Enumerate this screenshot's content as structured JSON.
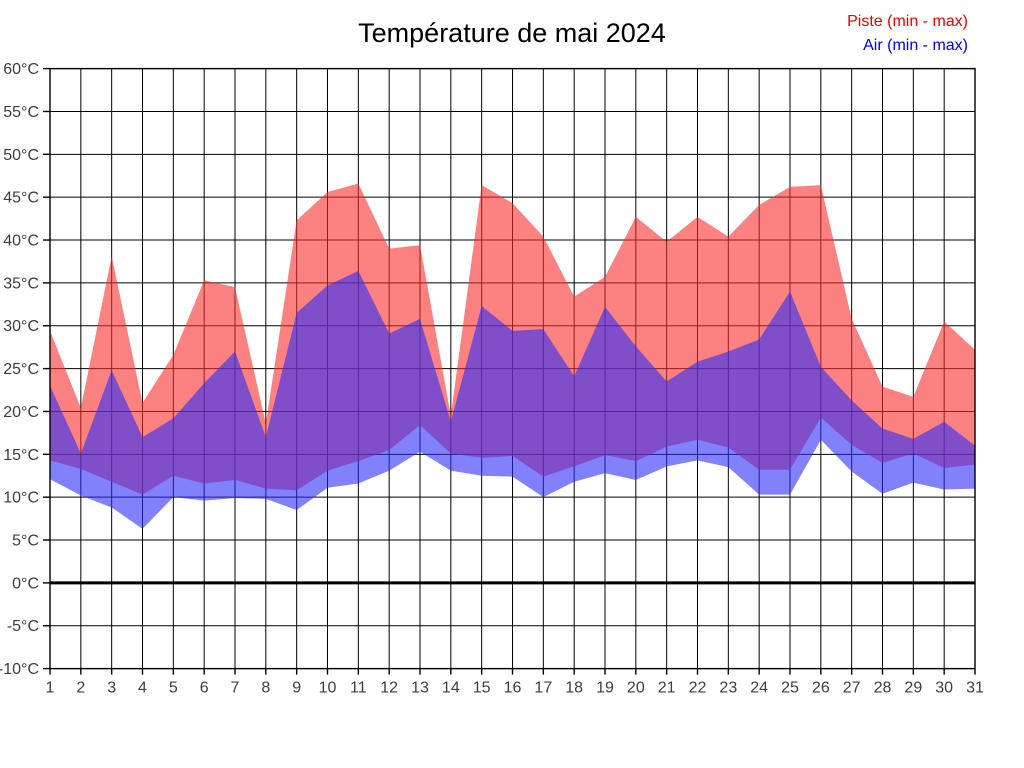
{
  "header": {
    "title": "Température de mai 2024"
  },
  "legend": {
    "piste_label": "Piste (min - max)",
    "air_label": "Air (min - max)",
    "piste_color": "#e60000",
    "air_color": "#0000e6"
  },
  "chart_data": {
    "type": "area",
    "title": "Température de mai 2024",
    "xlabel": "",
    "ylabel": "",
    "ylim": [
      -10,
      60
    ],
    "y_step": 5,
    "grid": true,
    "zero_line_at": 0,
    "legend_position": "top-right",
    "x": [
      1,
      2,
      3,
      4,
      5,
      6,
      7,
      8,
      9,
      10,
      11,
      12,
      13,
      14,
      15,
      16,
      17,
      18,
      19,
      20,
      21,
      22,
      23,
      24,
      25,
      26,
      27,
      28,
      29,
      30,
      31
    ],
    "x_tick_labels": [
      "1",
      "2",
      "3",
      "4",
      "5",
      "6",
      "7",
      "8",
      "9",
      "10",
      "11",
      "12",
      "13",
      "14",
      "15",
      "16",
      "17",
      "18",
      "19",
      "20",
      "21",
      "22",
      "23",
      "24",
      "25",
      "26",
      "27",
      "28",
      "29",
      "30",
      "31"
    ],
    "y_tick_labels": [
      "60°C",
      "55°C",
      "50°C",
      "45°C",
      "40°C",
      "35°C",
      "30°C",
      "25°C",
      "20°C",
      "15°C",
      "10°C",
      "5°C",
      "0°C",
      "-5°C",
      "-10°C"
    ],
    "series": [
      {
        "key": "piste-band",
        "name": "Piste (min - max)",
        "role": "min-max-band",
        "color_fill": "rgba(250,45,45,0.6)",
        "min": [
          14.3,
          13.3,
          11.8,
          10.3,
          12.5,
          11.6,
          12.0,
          11.0,
          10.8,
          13.1,
          14.2,
          15.5,
          18.4,
          15.1,
          14.6,
          14.8,
          12.4,
          13.6,
          14.9,
          14.2,
          15.9,
          16.7,
          15.8,
          13.2,
          13.2,
          19.3,
          16.1,
          14.0,
          15.1,
          13.4,
          13.8
        ],
        "max": [
          29.4,
          20.4,
          38.1,
          21.0,
          26.6,
          35.3,
          34.5,
          18.6,
          42.3,
          45.6,
          46.6,
          39.0,
          39.4,
          19.5,
          46.4,
          44.3,
          40.4,
          33.4,
          35.7,
          42.7,
          39.8,
          42.7,
          40.4,
          44.1,
          46.2,
          46.4,
          30.8,
          22.9,
          21.7,
          30.5,
          27.2
        ]
      },
      {
        "key": "air-band",
        "name": "Air (min - max)",
        "role": "min-max-band",
        "color_fill": "rgba(45,45,250,0.6)",
        "min": [
          12.1,
          10.2,
          8.8,
          6.3,
          10.0,
          9.6,
          9.9,
          9.8,
          8.5,
          11.1,
          11.6,
          13.1,
          15.3,
          13.1,
          12.5,
          12.4,
          10.0,
          11.8,
          12.8,
          12.0,
          13.6,
          14.3,
          13.5,
          10.3,
          10.3,
          16.7,
          13.0,
          10.4,
          11.7,
          10.9,
          11.0
        ],
        "max": [
          23.0,
          15.1,
          24.8,
          17.0,
          19.2,
          23.3,
          27.0,
          17.0,
          31.5,
          34.7,
          36.4,
          29.1,
          30.8,
          18.8,
          32.3,
          29.4,
          29.6,
          24.1,
          32.2,
          27.6,
          23.5,
          25.8,
          27.0,
          28.4,
          34.0,
          25.2,
          21.3,
          18.0,
          16.8,
          18.8,
          16.0
        ]
      }
    ]
  }
}
